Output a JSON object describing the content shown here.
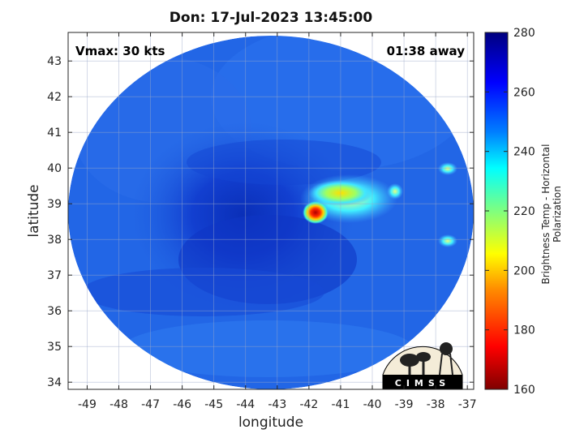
{
  "title": "Don: 17-Jul-2023 13:45:00",
  "annotations": {
    "vmax": "Vmax: 30 kts",
    "away": "01:38 away"
  },
  "axes": {
    "xlabel": "longitude",
    "ylabel": "latitude",
    "xlim": [
      -49.6,
      -36.8
    ],
    "ylim": [
      33.8,
      43.8
    ],
    "xticks": [
      "-49",
      "-48",
      "-47",
      "-46",
      "-45",
      "-44",
      "-43",
      "-42",
      "-41",
      "-40",
      "-39",
      "-38",
      "-37"
    ],
    "yticks": [
      "34",
      "35",
      "36",
      "37",
      "38",
      "39",
      "40",
      "41",
      "42",
      "43"
    ],
    "grid": true
  },
  "colorbar": {
    "label": "Brightness Temp - Horizontal Polarization",
    "range": [
      160,
      280
    ],
    "ticks": [
      "160",
      "180",
      "200",
      "220",
      "240",
      "260",
      "280"
    ]
  },
  "logo": {
    "text": "CIMSS"
  },
  "features": {
    "storm_center": {
      "lon": -43.5,
      "lat": 38.5
    },
    "cold_spots": [
      {
        "lon": -41.8,
        "lat": 38.75,
        "temp": 170
      },
      {
        "lon": -41.2,
        "lat": 39.3,
        "temp": 210
      },
      {
        "lon": -37.5,
        "lat": 39.85,
        "temp": 225
      },
      {
        "lon": -37.6,
        "lat": 37.9,
        "temp": 225
      }
    ]
  },
  "colors": {
    "background_field": "#1f5fe0",
    "cold_core": "#c00000"
  }
}
